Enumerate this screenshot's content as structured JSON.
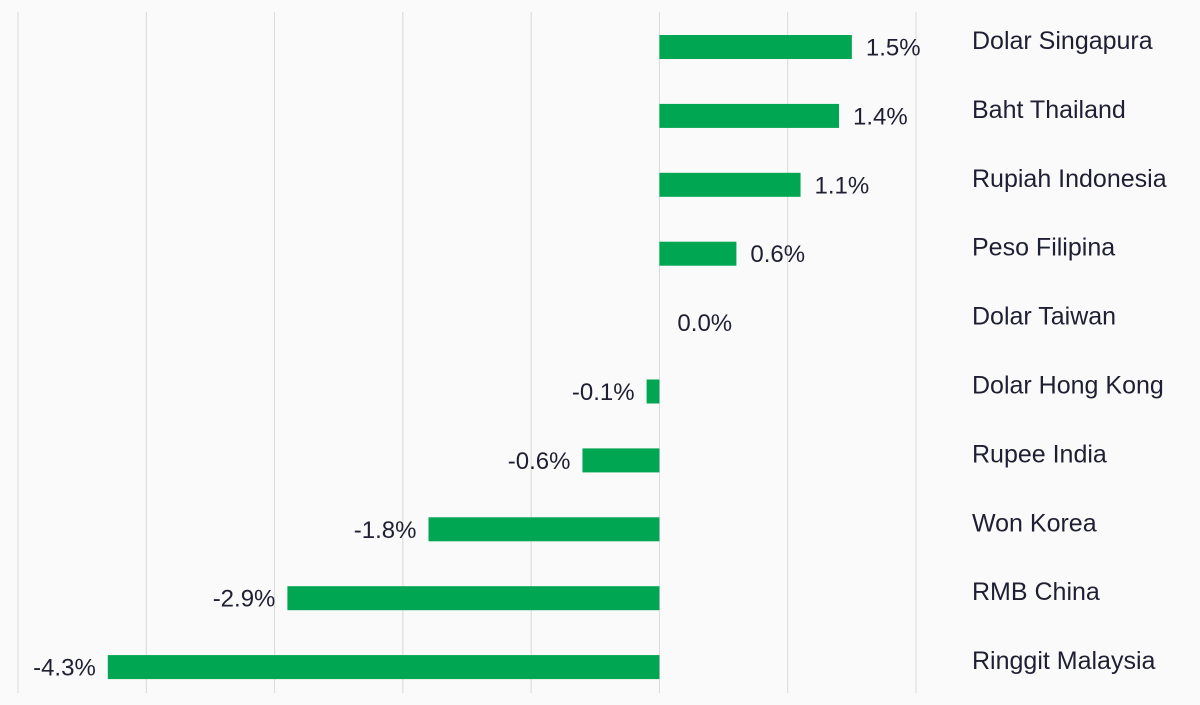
{
  "chart_data": {
    "type": "bar",
    "orientation": "horizontal",
    "categories": [
      "Dolar Singapura",
      "Baht Thailand",
      "Rupiah Indonesia",
      "Peso Filipina",
      "Dolar Taiwan",
      "Dolar Hong Kong",
      "Rupee India",
      "Won Korea",
      "RMB China",
      "Ringgit Malaysia"
    ],
    "values": [
      1.5,
      1.4,
      1.1,
      0.6,
      0.0,
      -0.1,
      -0.6,
      -1.8,
      -2.9,
      -4.3
    ],
    "data_labels": [
      "1.5%",
      "1.4%",
      "1.1%",
      "0.6%",
      "0.0%",
      "-0.1%",
      "-0.6%",
      "-1.8%",
      "-2.9%",
      "-4.3%"
    ],
    "xlim": [
      -5,
      2
    ],
    "grid": true,
    "category_labels_position": "right",
    "bar_color": "#00a651",
    "grid_color": "#d9d9d9",
    "text_color": "#1f1f33"
  }
}
